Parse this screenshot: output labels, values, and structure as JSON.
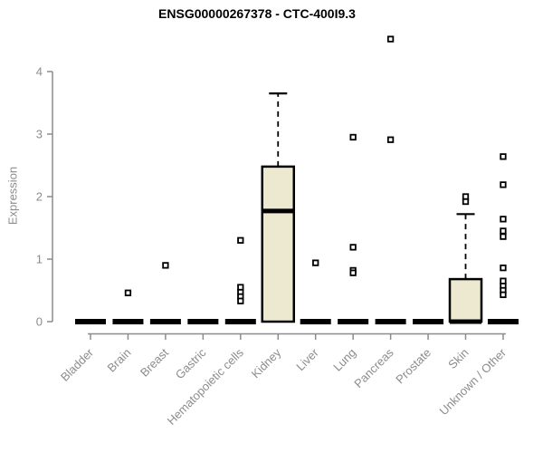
{
  "chart_data": {
    "type": "boxplot",
    "title": "ENSG00000267378 - CTC-400I9.3",
    "xlabel": "",
    "ylabel": "Expression",
    "ylim": [
      0,
      4.6
    ],
    "yticks": [
      0,
      1,
      2,
      3,
      4
    ],
    "grid": "off",
    "legend": "none",
    "box_fill_color": "#EDE8D0",
    "box_border_color": "#000000",
    "axis_color": "#8c8c8c",
    "outlier_marker": "open-square",
    "categories": [
      "Bladder",
      "Brain",
      "Breast",
      "Gastric",
      "Hematopoietic cells",
      "Kidney",
      "Liver",
      "Lung",
      "Pancreas",
      "Prostate",
      "Skin",
      "Unknown / Other"
    ],
    "boxes": [
      {
        "category": "Bladder",
        "q1": 0,
        "median": 0,
        "q3": 0,
        "whisker_low": 0,
        "whisker_high": 0,
        "outliers": []
      },
      {
        "category": "Brain",
        "q1": 0,
        "median": 0,
        "q3": 0,
        "whisker_low": 0,
        "whisker_high": 0,
        "outliers": [
          0.46
        ]
      },
      {
        "category": "Breast",
        "q1": 0,
        "median": 0,
        "q3": 0,
        "whisker_low": 0,
        "whisker_high": 0,
        "outliers": [
          0.9
        ]
      },
      {
        "category": "Gastric",
        "q1": 0,
        "median": 0,
        "q3": 0,
        "whisker_low": 0,
        "whisker_high": 0,
        "outliers": []
      },
      {
        "category": "Hematopoietic cells",
        "q1": 0,
        "median": 0,
        "q3": 0,
        "whisker_low": 0,
        "whisker_high": 0,
        "outliers": [
          1.3,
          0.55,
          0.47,
          0.4,
          0.33
        ]
      },
      {
        "category": "Kidney",
        "q1": 0,
        "median": 1.77,
        "q3": 2.48,
        "whisker_low": 0,
        "whisker_high": 3.65,
        "outliers": []
      },
      {
        "category": "Liver",
        "q1": 0,
        "median": 0,
        "q3": 0,
        "whisker_low": 0,
        "whisker_high": 0,
        "outliers": [
          0.94
        ]
      },
      {
        "category": "Lung",
        "q1": 0,
        "median": 0,
        "q3": 0,
        "whisker_low": 0,
        "whisker_high": 0,
        "outliers": [
          2.95,
          1.19,
          0.82,
          0.78
        ]
      },
      {
        "category": "Pancreas",
        "q1": 0,
        "median": 0,
        "q3": 0,
        "whisker_low": 0,
        "whisker_high": 0,
        "outliers": [
          4.52,
          2.91
        ]
      },
      {
        "category": "Prostate",
        "q1": 0,
        "median": 0,
        "q3": 0,
        "whisker_low": 0,
        "whisker_high": 0,
        "outliers": []
      },
      {
        "category": "Skin",
        "q1": 0,
        "median": 0,
        "q3": 0.68,
        "whisker_low": 0,
        "whisker_high": 1.72,
        "outliers": [
          2.0,
          1.92
        ]
      },
      {
        "category": "Unknown / Other",
        "q1": 0,
        "median": 0,
        "q3": 0,
        "whisker_low": 0,
        "whisker_high": 0,
        "outliers": [
          2.64,
          2.19,
          1.64,
          1.45,
          1.36,
          0.86,
          0.65,
          0.57,
          0.5,
          0.43
        ]
      }
    ]
  }
}
